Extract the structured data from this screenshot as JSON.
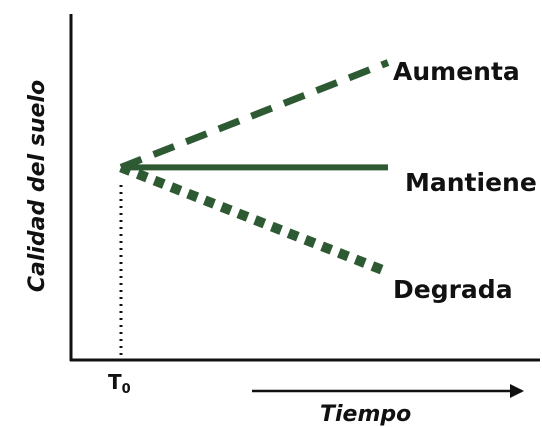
{
  "chart_data": {
    "type": "line",
    "title": "",
    "xlabel": "Tiempo",
    "ylabel": "Calidad del suelo",
    "x_ticks": [
      {
        "label": "T",
        "subscript": "0",
        "x": 0
      }
    ],
    "xlim": [
      0,
      10
    ],
    "ylim": [
      0,
      10
    ],
    "grid": false,
    "series": [
      {
        "name": "Aumenta",
        "style": "dashed",
        "x": [
          0,
          10
        ],
        "y": [
          5.7,
          8.8
        ]
      },
      {
        "name": "Mantiene",
        "style": "solid",
        "x": [
          0,
          10
        ],
        "y": [
          5.7,
          5.7
        ]
      },
      {
        "name": "Degrada",
        "style": "dotted-thick",
        "x": [
          0,
          10
        ],
        "y": [
          5.7,
          2.6
        ]
      }
    ],
    "colors": {
      "series": "#2d5a32",
      "axis": "#111111",
      "text": "#111111"
    }
  }
}
